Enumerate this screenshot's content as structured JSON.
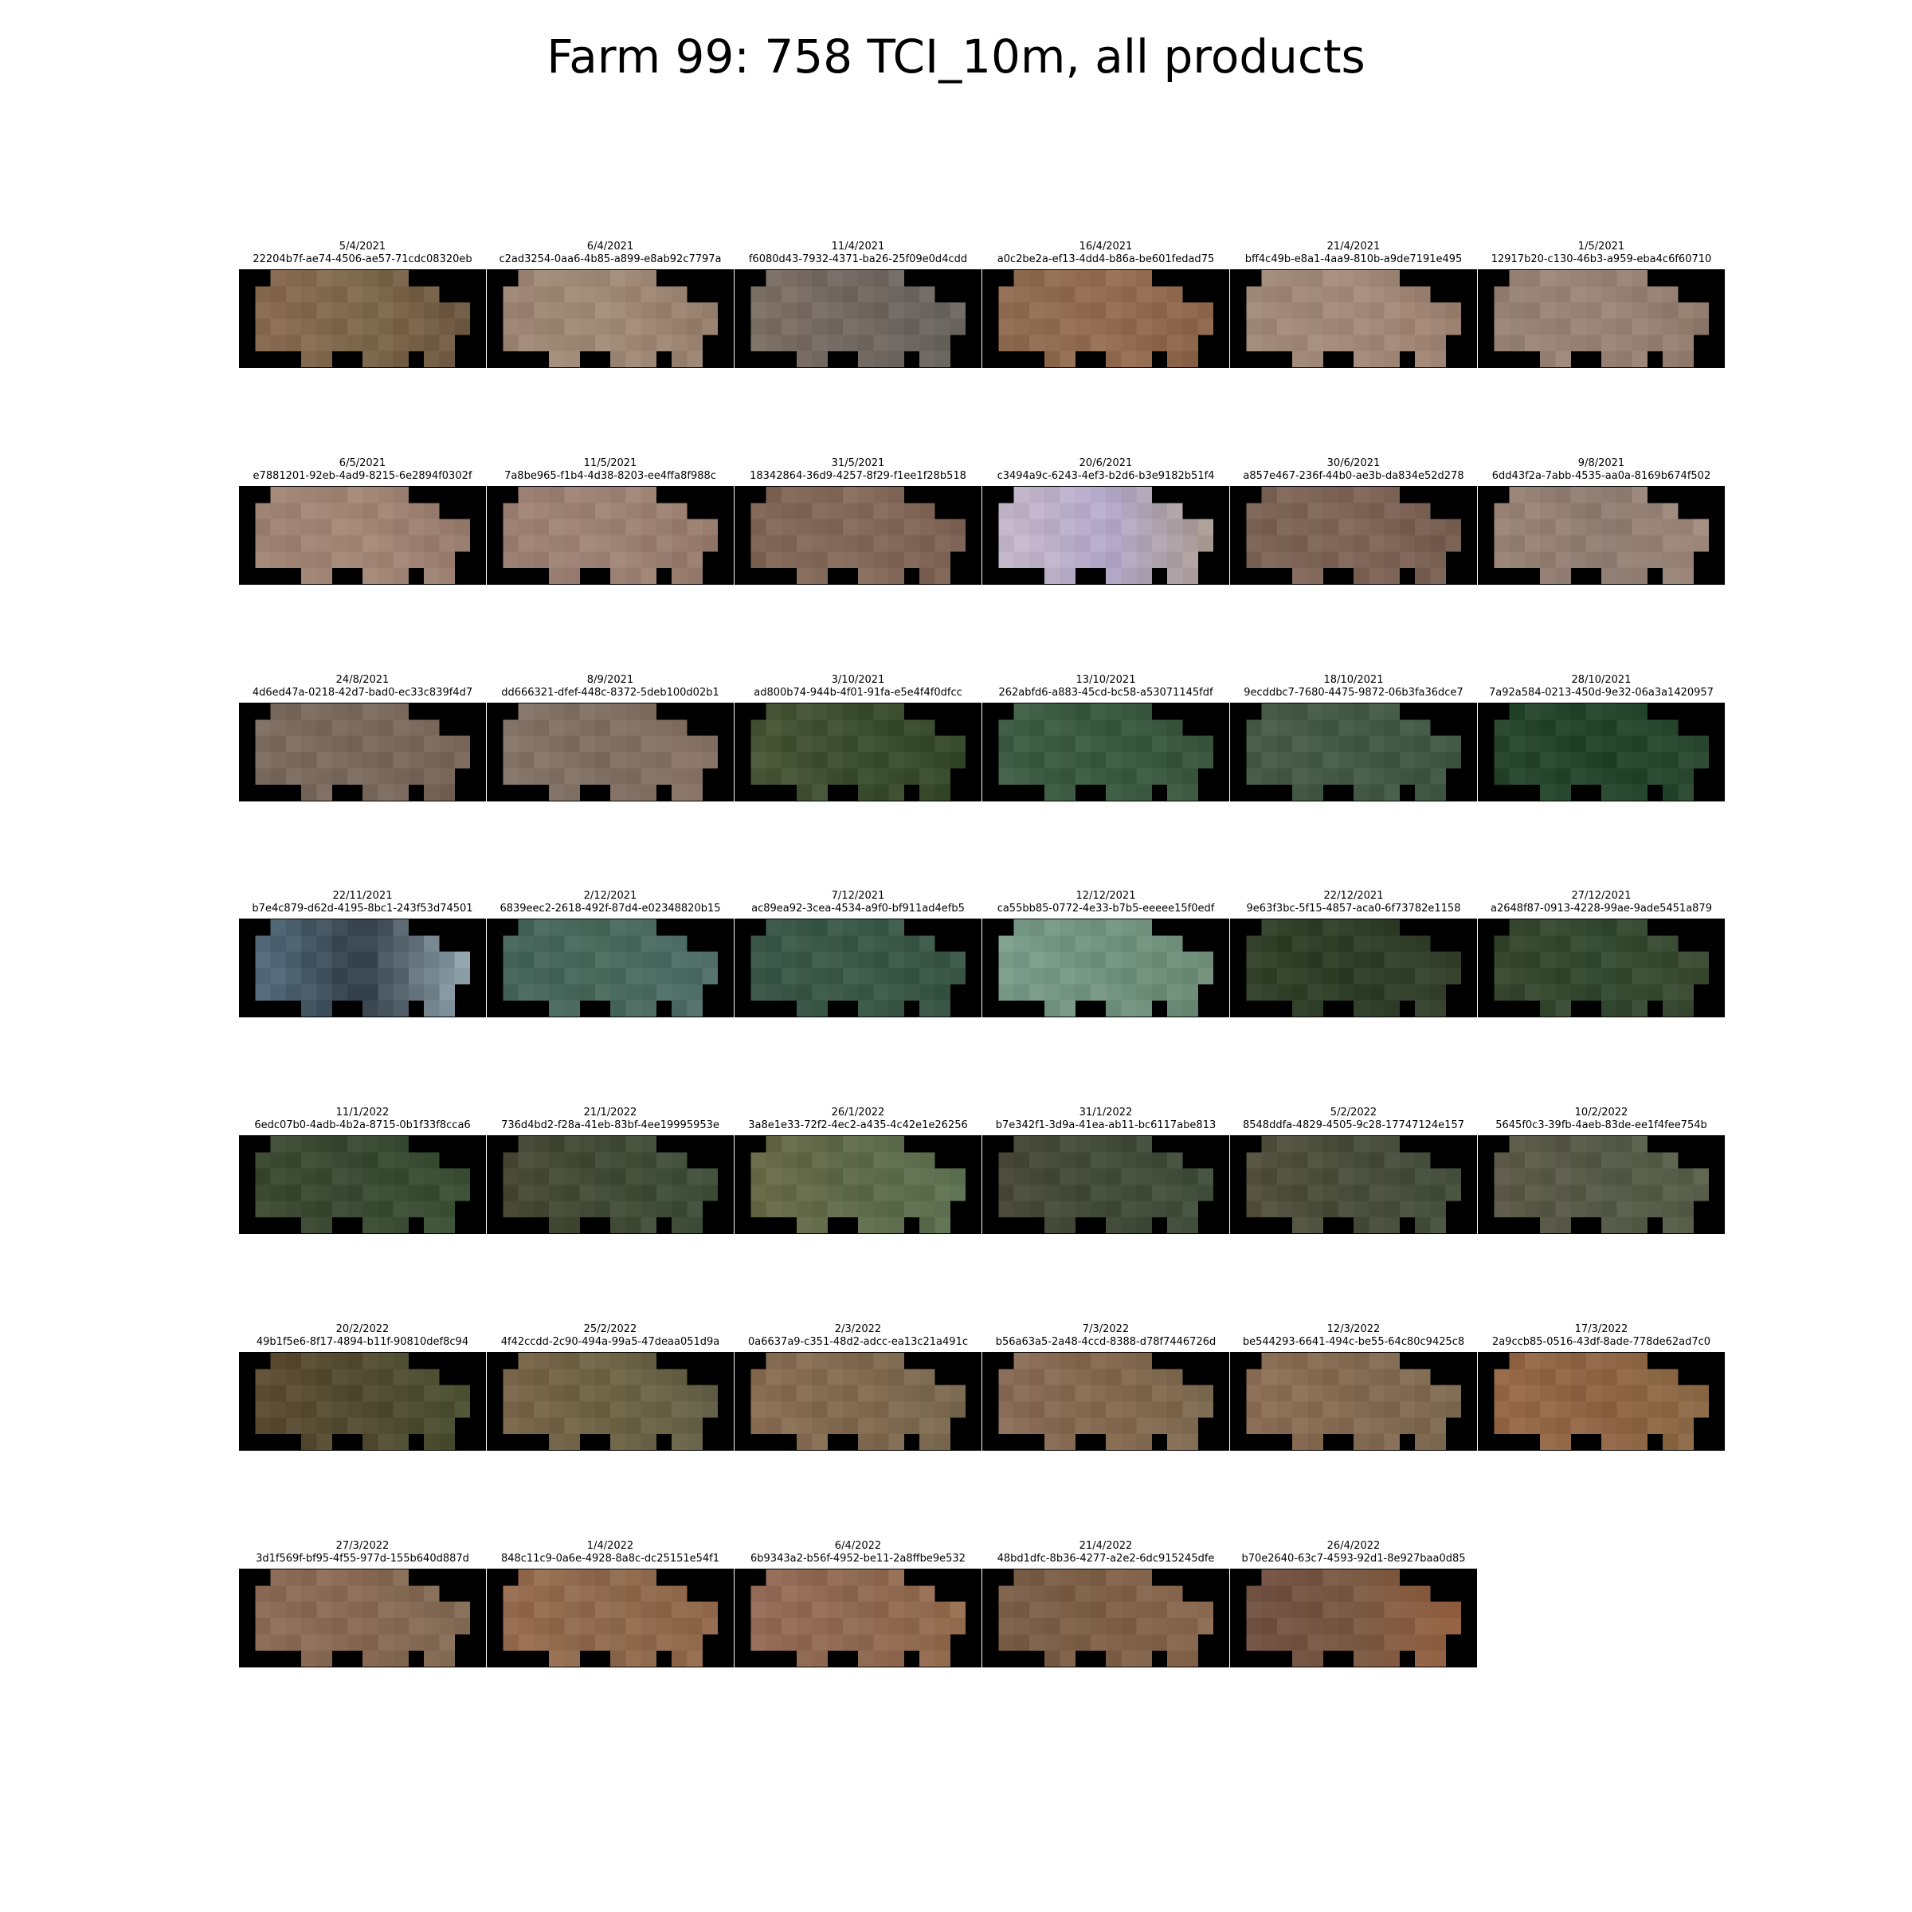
{
  "title": "Farm 99: 758 TCI_10m, all products",
  "tiles": [
    {
      "date": "5/4/2021",
      "id": "22204b7f-ae74-4506-ae57-71cdc08320eb",
      "colors": [
        "#8a6a52",
        "#7e6a4e",
        "#6c5640"
      ]
    },
    {
      "date": "6/4/2021",
      "id": "c2ad3254-0aa6-4b85-a899-e8ab92c7797a",
      "colors": [
        "#9a8372",
        "#a08a78",
        "#947c6a"
      ]
    },
    {
      "date": "11/4/2021",
      "id": "f6080d43-7932-4371-ba26-25f09e0d4cdd",
      "colors": [
        "#7f7166",
        "#716862",
        "#6a655f"
      ]
    },
    {
      "date": "16/4/2021",
      "id": "a0c2be2a-ef13-4dd4-b86a-be601fedad75",
      "colors": [
        "#8c6a50",
        "#946d52",
        "#8a6248"
      ]
    },
    {
      "date": "21/4/2021",
      "id": "bff4c49b-e8a1-4aa9-810b-a9de7191e495",
      "colors": [
        "#9c8676",
        "#a48a7a",
        "#9b8070"
      ]
    },
    {
      "date": "1/5/2021",
      "id": "12917b20-c130-46b3-a959-eba4c6f60710",
      "colors": [
        "#958173",
        "#9a8478",
        "#8f7a6c"
      ]
    },
    {
      "date": "6/5/2021",
      "id": "e7881201-92eb-4ad9-8215-6e2894f0302f",
      "colors": [
        "#9c8072",
        "#a28676",
        "#977a6c"
      ]
    },
    {
      "date": "11/5/2021",
      "id": "7a8be965-f1b4-4d38-8203-ee4ffa8f988c",
      "colors": [
        "#9a7f72",
        "#9e8476",
        "#94796b"
      ]
    },
    {
      "date": "31/5/2021",
      "id": "18342864-36d9-4257-8f29-f1ee1f28b518",
      "colors": [
        "#7f6556",
        "#846a5a",
        "#7a6052"
      ]
    },
    {
      "date": "20/6/2021",
      "id": "c3494a9c-6243-4ef3-b2d6-b3e9182b51f4",
      "colors": [
        "#c6b7c8",
        "#b3a9c9",
        "#a89a8c"
      ]
    },
    {
      "date": "30/6/2021",
      "id": "a857e467-236f-44b0-ae3b-da834e52d278",
      "colors": [
        "#7a6254",
        "#7f6658",
        "#745c4e"
      ]
    },
    {
      "date": "9/8/2021",
      "id": "6dd43f2a-7abb-4535-aa0a-8169b674f502",
      "colors": [
        "#9a8478",
        "#8f7c72",
        "#a08a7c"
      ]
    },
    {
      "date": "24/8/2021",
      "id": "4d6ed47a-0218-42d7-bad0-ec33c839f4d7",
      "colors": [
        "#7c6c60",
        "#7a6a5e",
        "#766456"
      ]
    },
    {
      "date": "8/9/2021",
      "id": "dd666321-dfef-448c-8372-5deb100d02b1",
      "colors": [
        "#857468",
        "#7f6e62",
        "#8a7668"
      ]
    },
    {
      "date": "3/10/2021",
      "id": "ad800b74-944b-4f01-91fa-e5e4f4f0dfcc",
      "colors": [
        "#4b5638",
        "#3c4e30",
        "#35492b"
      ]
    },
    {
      "date": "13/10/2021",
      "id": "262abfd6-a883-45cd-bc58-a53071145fdf",
      "colors": [
        "#3f5e45",
        "#3a5a40",
        "#3c573f"
      ]
    },
    {
      "date": "18/10/2021",
      "id": "9ecddbc7-7680-4475-9872-06b3fa36dce7",
      "colors": [
        "#4a5c4a",
        "#445a46",
        "#3e5642"
      ]
    },
    {
      "date": "28/10/2021",
      "id": "7a92a584-0213-450d-9e32-06a3a1420957",
      "colors": [
        "#2a4830",
        "#24442c",
        "#2c4a32"
      ]
    },
    {
      "date": "22/11/2021",
      "id": "b7e4c879-d62d-4195-8bc1-243f53d74501",
      "colors": [
        "#5a7282",
        "#34404a",
        "#9cb0b8"
      ]
    },
    {
      "date": "2/12/2021",
      "id": "6839eec2-2618-492f-87d4-e02348820b15",
      "colors": [
        "#46645a",
        "#4a6a5e",
        "#50706a"
      ]
    },
    {
      "date": "7/12/2021",
      "id": "ac89ea92-3cea-4534-a9f0-bf911ad4efb5",
      "colors": [
        "#3a5648",
        "#3c5a4a",
        "#385444"
      ]
    },
    {
      "date": "12/12/2021",
      "id": "ca55bb85-0772-4e33-b7b5-eeeee15f0edf",
      "colors": [
        "#7a9c8a",
        "#70927e",
        "#6c8a76"
      ]
    },
    {
      "date": "22/12/2021",
      "id": "9e63f3bc-5f15-4857-aca0-6f73782e1158",
      "colors": [
        "#34422a",
        "#2e3e28",
        "#3a4430"
      ]
    },
    {
      "date": "27/12/2021",
      "id": "a2648f87-0913-4228-99ae-9ade5451a879",
      "colors": [
        "#38462e",
        "#344a32",
        "#3e4c34"
      ]
    },
    {
      "date": "11/1/2022",
      "id": "6edc07b0-4adb-4b2a-8715-0b1f33f8cca6",
      "colors": [
        "#3e4a32",
        "#3a4a34",
        "#3c5236"
      ]
    },
    {
      "date": "21/1/2022",
      "id": "736d4bd2-f28a-41eb-83bf-4ee19995953e",
      "colors": [
        "#4a4a36",
        "#434c38",
        "#3e503a"
      ]
    },
    {
      "date": "26/1/2022",
      "id": "3a8e1e33-72f2-4ec2-a435-4c42e1e26256",
      "colors": [
        "#6a6a48",
        "#5e6a4a",
        "#5c7252"
      ]
    },
    {
      "date": "31/1/2022",
      "id": "b7e342f1-3d9a-41ea-ab11-bc6117abe813",
      "colors": [
        "#4a4a3a",
        "#444c3a",
        "#42503e"
      ]
    },
    {
      "date": "5/2/2022",
      "id": "8548ddfa-4829-4505-9c28-17747124e157",
      "colors": [
        "#54503e",
        "#4a4e3c",
        "#44503c"
      ]
    },
    {
      "date": "10/2/2022",
      "id": "5645f0c3-39fb-4aeb-83de-ee1f4fee754b",
      "colors": [
        "#5e5a4a",
        "#565a48",
        "#5a604c"
      ]
    },
    {
      "date": "20/2/2022",
      "id": "49b1f5e6-8f17-4894-b11f-90810def8c94",
      "colors": [
        "#5e4c32",
        "#524c32",
        "#4a5032"
      ]
    },
    {
      "date": "25/2/2022",
      "id": "4f42ccdd-2c90-494a-99a5-47deaa051d9a",
      "colors": [
        "#7a6448",
        "#6e6446",
        "#64624a"
      ]
    },
    {
      "date": "2/3/2022",
      "id": "0a6637a9-c351-48d2-adcc-ea13c21a491c",
      "colors": [
        "#8a6e54",
        "#806a50",
        "#7a6a52"
      ]
    },
    {
      "date": "7/3/2022",
      "id": "b56a63a5-2a48-4ccd-8388-d78f7446726d",
      "colors": [
        "#8a6c58",
        "#84684e",
        "#7c6c52"
      ]
    },
    {
      "date": "12/3/2022",
      "id": "be544293-6641-494c-be55-64c80c9425c8",
      "colors": [
        "#8e7058",
        "#846a52",
        "#7c6a50"
      ]
    },
    {
      "date": "17/3/2022",
      "id": "2a9ccb85-0516-43df-8ade-778de62ad7c0",
      "colors": [
        "#966a48",
        "#8e6444",
        "#8a6a46"
      ]
    },
    {
      "date": "27/3/2022",
      "id": "3d1f569f-bf95-4f55-977d-155b640d887d",
      "colors": [
        "#8e6c58",
        "#886a54",
        "#826c56"
      ]
    },
    {
      "date": "1/4/2022",
      "id": "848c11c9-0a6e-4928-8a8c-dc25151e54f1",
      "colors": [
        "#966c50",
        "#8e6a4e",
        "#92684a"
      ]
    },
    {
      "date": "6/4/2022",
      "id": "6b9343a2-b56f-4952-be11-2a8ffbe9e532",
      "colors": [
        "#966c58",
        "#8e6a52",
        "#946c4e"
      ]
    },
    {
      "date": "21/4/2022",
      "id": "48bd1dfc-8b36-4277-a2e2-6dc915245dfe",
      "colors": [
        "#7a5e48",
        "#7e6048",
        "#8a6a50"
      ]
    },
    {
      "date": "26/4/2022",
      "id": "b70e2640-63c7-4593-92d1-8e927baa0d85",
      "colors": [
        "#6e4e40",
        "#7a5a44",
        "#9a6444"
      ]
    }
  ]
}
